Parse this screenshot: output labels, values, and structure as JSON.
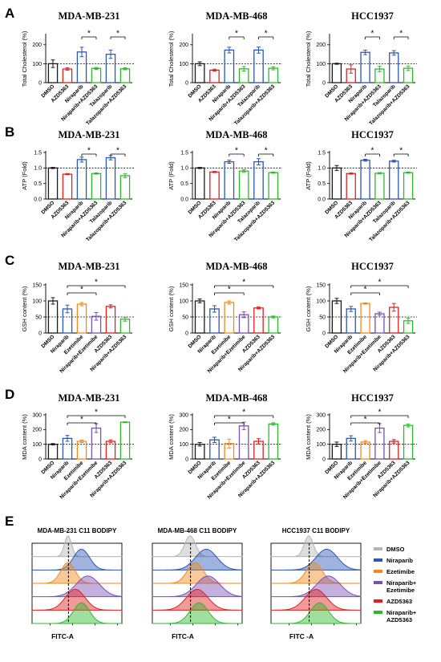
{
  "panel_labels": [
    "A",
    "B",
    "C",
    "D",
    "E"
  ],
  "colors": {
    "DMSO": "#1a1a1a",
    "AZD5363": "#e02020",
    "Niraparib": "#2b57b5",
    "Niraparib+AZD5363": "#2eb82e",
    "Talazoparib": "#2b57b5",
    "Talazoparib+AZD5363": "#2eb82e",
    "Ezetimibe": "#f08a1c",
    "Niraparib+Ezetimibe": "#7b4fb4",
    "DMSO_hist": "#b5b5b5"
  },
  "chart_data": [
    {
      "panel": "A",
      "type": "bar",
      "title": "MDA-MB-231",
      "ylabel": "Total Cholesterol (%)",
      "ylim": [
        0,
        250
      ],
      "yticks": [
        0,
        100,
        200
      ],
      "reference_line": 100,
      "categories": [
        "DMSO",
        "AZD5363",
        "Niraparib",
        "Niraparib+AZD5363",
        "Talazoparib",
        "Talazoparib+AZD5363"
      ],
      "values": [
        100,
        72,
        162,
        75,
        150,
        73
      ],
      "errors": [
        20,
        6,
        25,
        5,
        22,
        5
      ],
      "significance": [
        [
          2,
          3,
          "*"
        ],
        [
          4,
          5,
          "*"
        ]
      ]
    },
    {
      "panel": "A",
      "type": "bar",
      "title": "MDA-MB-468",
      "ylabel": "Total Cholesterol (%)",
      "ylim": [
        0,
        250
      ],
      "yticks": [
        0,
        100,
        200
      ],
      "reference_line": 100,
      "categories": [
        "DMSO",
        "AZD5363",
        "Niraparib",
        "Niraparib+AZD5363",
        "Talazoparib",
        "Talazoparib+AZD5363"
      ],
      "values": [
        100,
        66,
        172,
        73,
        172,
        76
      ],
      "errors": [
        10,
        5,
        15,
        12,
        16,
        8
      ],
      "significance": [
        [
          2,
          3,
          "*"
        ],
        [
          4,
          5,
          "*"
        ]
      ]
    },
    {
      "panel": "A",
      "type": "bar",
      "title": "HCC1937",
      "ylabel": "Total Cholesterol (%)",
      "ylim": [
        0,
        250
      ],
      "yticks": [
        0,
        100,
        200
      ],
      "reference_line": 100,
      "categories": [
        "DMSO",
        "AZD5363",
        "Niraparib",
        "Niraparib+AZD5363",
        "Talazoparib",
        "Talazoparib+AZD5363"
      ],
      "values": [
        100,
        72,
        160,
        72,
        157,
        76
      ],
      "errors": [
        3,
        22,
        12,
        14,
        12,
        12
      ],
      "significance": [
        [
          2,
          3,
          "*"
        ],
        [
          4,
          5,
          "*"
        ]
      ]
    },
    {
      "panel": "B",
      "type": "bar",
      "title": "MDA-MB-231",
      "ylabel": "ATP (Fold)",
      "ylim": [
        0,
        1.5
      ],
      "yticks": [
        0.0,
        0.5,
        1.0,
        1.5
      ],
      "reference_line": 1.0,
      "categories": [
        "DMSO",
        "AZD5363",
        "Niraparib",
        "Niraparib+AZD5363",
        "Talazoparib",
        "Talazoparib+AZD5363"
      ],
      "values": [
        1.0,
        0.8,
        1.27,
        0.82,
        1.33,
        0.75
      ],
      "errors": [
        0.02,
        0.02,
        0.08,
        0.02,
        0.07,
        0.06
      ],
      "significance": [
        [
          2,
          3,
          "*"
        ],
        [
          4,
          5,
          "*"
        ]
      ]
    },
    {
      "panel": "B",
      "type": "bar",
      "title": "MDA-MB-468",
      "ylabel": "ATP (Fold)",
      "ylim": [
        0,
        1.5
      ],
      "yticks": [
        0.0,
        0.5,
        1.0,
        1.5
      ],
      "reference_line": 1.0,
      "categories": [
        "DMSO",
        "AZD5363",
        "Niraparib",
        "Niraparib+AZD5363",
        "Talazoparib",
        "Talazoparib+AZD5363"
      ],
      "values": [
        1.0,
        0.87,
        1.2,
        0.9,
        1.2,
        0.85
      ],
      "errors": [
        0.02,
        0.02,
        0.05,
        0.04,
        0.1,
        0.02
      ],
      "significance": [
        [
          2,
          3,
          "*"
        ],
        [
          4,
          5,
          "*"
        ]
      ]
    },
    {
      "panel": "B",
      "type": "bar",
      "title": "HCC1937",
      "ylabel": "ATP (Fold)",
      "ylim": [
        0,
        1.5
      ],
      "yticks": [
        0.0,
        0.5,
        1.0,
        1.5
      ],
      "reference_line": 1.0,
      "categories": [
        "DMSO",
        "AZD5363",
        "Niraparib",
        "Niraparib+AZD5363",
        "Talazoparib",
        "Talazoparib+AZD5363"
      ],
      "values": [
        1.0,
        0.82,
        1.25,
        0.83,
        1.22,
        0.85
      ],
      "errors": [
        0.08,
        0.02,
        0.03,
        0.02,
        0.03,
        0.02
      ],
      "significance": [
        [
          2,
          3,
          "*"
        ],
        [
          4,
          5,
          "*"
        ]
      ]
    },
    {
      "panel": "C",
      "type": "bar",
      "title": "MDA-MB-231",
      "ylabel": "GSH content (%)",
      "ylim": [
        0,
        150
      ],
      "yticks": [
        0,
        50,
        100,
        150
      ],
      "reference_line": 50,
      "categories": [
        "DMSO",
        "Niraparib",
        "Ezetimibe",
        "Niraparib+Ezetimibe",
        "AZD5363",
        "Niraparib+AZD5363"
      ],
      "values": [
        100,
        75,
        90,
        52,
        83,
        43
      ],
      "errors": [
        10,
        12,
        5,
        12,
        5,
        6
      ],
      "significance": [
        [
          1,
          3,
          "*"
        ],
        [
          1,
          5,
          "*"
        ]
      ]
    },
    {
      "panel": "C",
      "type": "bar",
      "title": "MDA-MB-468",
      "ylabel": "GSH content (%)",
      "ylim": [
        0,
        150
      ],
      "yticks": [
        0,
        50,
        100,
        150
      ],
      "reference_line": 50,
      "categories": [
        "DMSO",
        "Niraparib",
        "Ezetimibe",
        "Niraparib+Ezetimibe",
        "AZD5363",
        "Niraparib+AZD5363"
      ],
      "values": [
        100,
        75,
        95,
        57,
        78,
        50
      ],
      "errors": [
        6,
        10,
        5,
        9,
        3,
        3
      ],
      "significance": [
        [
          1,
          3,
          "*"
        ],
        [
          1,
          5,
          "*"
        ]
      ]
    },
    {
      "panel": "C",
      "type": "bar",
      "title": "HCC1937",
      "ylabel": "GSH content (%)",
      "ylim": [
        0,
        150
      ],
      "yticks": [
        0,
        50,
        100,
        150
      ],
      "reference_line": 50,
      "categories": [
        "DMSO",
        "Niraparib",
        "Ezetimibe",
        "Niraparib+Ezetimibe",
        "AZD5363",
        "Niraparib+AZD5363"
      ],
      "values": [
        100,
        75,
        92,
        60,
        80,
        38
      ],
      "errors": [
        8,
        8,
        2,
        5,
        12,
        8
      ],
      "significance": [
        [
          1,
          3,
          "*"
        ],
        [
          1,
          5,
          "*"
        ]
      ]
    },
    {
      "panel": "D",
      "type": "bar",
      "title": "MDA-MB-231",
      "ylabel": "MDA content (%)",
      "ylim": [
        0,
        300
      ],
      "yticks": [
        0,
        100,
        200,
        300
      ],
      "reference_line": 100,
      "categories": [
        "DMSO",
        "Niraparib",
        "Ezetimibe",
        "Niraparib+Ezetimibe",
        "AZD5363",
        "Niraparib+AZD5363"
      ],
      "values": [
        100,
        140,
        120,
        210,
        120,
        250
      ],
      "errors": [
        5,
        20,
        8,
        30,
        10,
        3
      ],
      "significance": [
        [
          1,
          3,
          "*"
        ],
        [
          1,
          5,
          "*"
        ]
      ]
    },
    {
      "panel": "D",
      "type": "bar",
      "title": "MDA-MB-468",
      "ylabel": "MDA content (%)",
      "ylim": [
        0,
        300
      ],
      "yticks": [
        0,
        100,
        200,
        300
      ],
      "reference_line": 100,
      "categories": [
        "DMSO",
        "Niraparib",
        "Ezetimibe",
        "Niraparib+Ezetimibe",
        "AZD5363",
        "Niraparib+AZD5363"
      ],
      "values": [
        100,
        130,
        105,
        225,
        120,
        238
      ],
      "errors": [
        12,
        18,
        30,
        25,
        18,
        8
      ],
      "significance": [
        [
          1,
          3,
          "*"
        ],
        [
          1,
          5,
          "*"
        ]
      ]
    },
    {
      "panel": "D",
      "type": "bar",
      "title": "HCC1937",
      "ylabel": "MDA content (%)",
      "ylim": [
        0,
        300
      ],
      "yticks": [
        0,
        100,
        200,
        300
      ],
      "reference_line": 100,
      "categories": [
        "DMSO",
        "Niraparib",
        "Ezetimibe",
        "Niraparib+Ezetimibe",
        "AZD5363",
        "Niraparib+AZD5363"
      ],
      "values": [
        100,
        140,
        115,
        210,
        120,
        228
      ],
      "errors": [
        15,
        18,
        10,
        30,
        12,
        10
      ],
      "significance": [
        [
          1,
          3,
          "*"
        ],
        [
          1,
          5,
          "*"
        ]
      ]
    }
  ],
  "flow": {
    "panels": [
      {
        "title": "MDA-MB-231 C11 BODIPY",
        "xlabel": "FITC-A",
        "peaks": [
          0.4,
          0.55,
          0.4,
          0.62,
          0.48,
          0.55
        ],
        "widths": [
          0.04,
          0.09,
          0.08,
          0.13,
          0.11,
          0.09
        ]
      },
      {
        "title": "MDA-MB-468 C11 BODIPY",
        "xlabel": "FITC-A",
        "peaks": [
          0.42,
          0.6,
          0.48,
          0.62,
          0.5,
          0.52
        ],
        "widths": [
          0.06,
          0.12,
          0.09,
          0.13,
          0.12,
          0.1
        ]
      },
      {
        "title": "HCC1937 C11 BODIPY",
        "xlabel": "FITC -A",
        "peaks": [
          0.42,
          0.62,
          0.48,
          0.64,
          0.5,
          0.54
        ],
        "widths": [
          0.05,
          0.12,
          0.09,
          0.13,
          0.12,
          0.1
        ]
      }
    ],
    "legend": [
      {
        "label": [
          "DMSO"
        ],
        "color": "#b5b5b5"
      },
      {
        "label": [
          "Niraparib"
        ],
        "color": "#2b57b5"
      },
      {
        "label": [
          "Ezetimibe"
        ],
        "color": "#f08a1c"
      },
      {
        "label": [
          "Niraparib+",
          "Ezetimibe"
        ],
        "color": "#7b4fb4"
      },
      {
        "label": [
          "AZD5363"
        ],
        "color": "#e02020"
      },
      {
        "label": [
          "Niraparib+",
          "AZD5363"
        ],
        "color": "#2eb82e"
      }
    ]
  }
}
